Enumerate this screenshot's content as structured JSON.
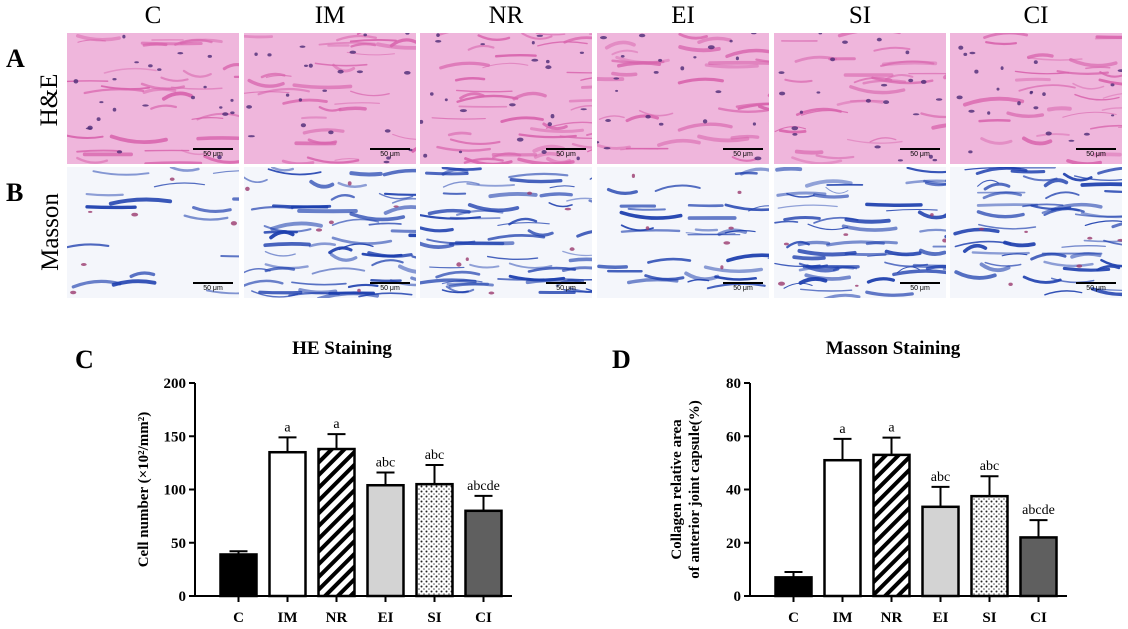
{
  "figure": {
    "columns": [
      "C",
      "IM",
      "NR",
      "EI",
      "SI",
      "CI"
    ],
    "rows": [
      {
        "letter": "A",
        "label": "H&E",
        "stain": "he"
      },
      {
        "letter": "B",
        "label": "Masson",
        "stain": "masson"
      }
    ],
    "scale_bar_text": "50 μm",
    "colors": {
      "he_bg": "#efb6dc",
      "he_fiber": "#d864ad",
      "he_nuclei": "#4b2a76",
      "masson_bg": "#f4f6fb",
      "masson_fiber": "#1d3fae",
      "masson_red": "#9a3a6e"
    }
  },
  "chart_data": [
    {
      "panel": "C",
      "type": "bar",
      "title": "HE Staining",
      "ylabel": "Cell number (×10²/mm²)",
      "xlabel": "",
      "categories": [
        "C",
        "IM",
        "NR",
        "EI",
        "SI",
        "CI"
      ],
      "values": [
        39,
        135,
        138,
        104,
        105,
        80
      ],
      "errors": [
        3,
        14,
        14,
        12,
        18,
        14
      ],
      "annotations": [
        "",
        "a",
        "a",
        "abc",
        "abc",
        "abcde"
      ],
      "ylim": [
        0,
        200
      ],
      "yticks": [
        0,
        50,
        100,
        150,
        200
      ],
      "fills": [
        "solid-black",
        "white",
        "diagonal-hatch",
        "light-gray",
        "dotted",
        "dark-gray"
      ]
    },
    {
      "panel": "D",
      "type": "bar",
      "title": "Masson Staining",
      "ylabel": "Collagen relative area of anterior joint capsule(%)",
      "ylabel_lines": [
        "Collagen relative area",
        "of anterior joint capsule(%)"
      ],
      "xlabel": "",
      "categories": [
        "C",
        "IM",
        "NR",
        "EI",
        "SI",
        "CI"
      ],
      "values": [
        7,
        51,
        53,
        33.5,
        37.5,
        22
      ],
      "errors": [
        2,
        8,
        6.5,
        7.5,
        7.5,
        6.5
      ],
      "annotations": [
        "",
        "a",
        "a",
        "abc",
        "abc",
        "abcde"
      ],
      "ylim": [
        0,
        80
      ],
      "yticks": [
        0,
        20,
        40,
        60,
        80
      ],
      "fills": [
        "solid-black",
        "white",
        "diagonal-hatch",
        "light-gray",
        "dotted",
        "dark-gray"
      ]
    }
  ]
}
